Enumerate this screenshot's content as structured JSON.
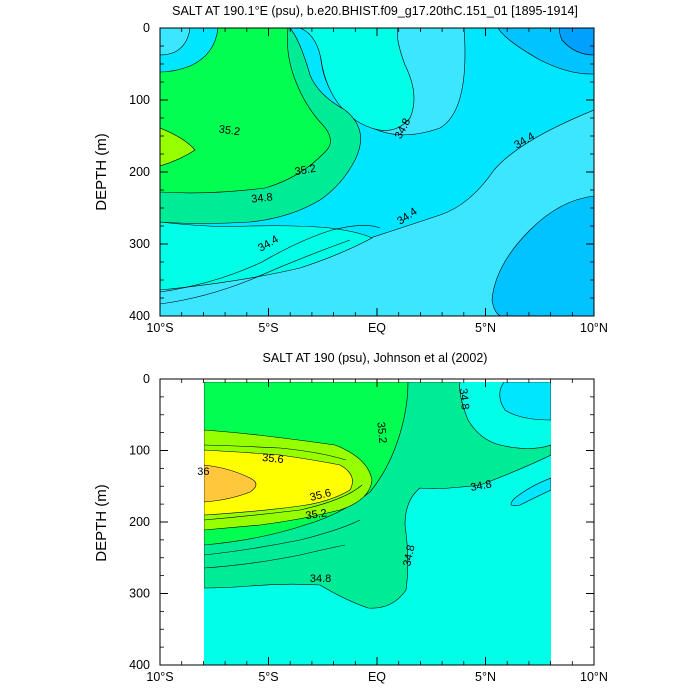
{
  "chart_data": [
    {
      "type": "contour",
      "title": "SALT AT 190.1°E (psu), b.e20.BHIST.f09_g17.20thC.151_01 [1895-1914]",
      "ylabel": "DEPTH (m)",
      "xlabel": "",
      "xlim": [
        -10,
        10
      ],
      "ylim": [
        400,
        0
      ],
      "x_ticks": [
        {
          "value": -10,
          "label": "10°S"
        },
        {
          "value": -5,
          "label": "5°S"
        },
        {
          "value": 0,
          "label": "EQ"
        },
        {
          "value": 5,
          "label": "5°N"
        },
        {
          "value": 10,
          "label": "10°N"
        }
      ],
      "y_ticks": [
        0,
        100,
        200,
        300,
        400
      ],
      "contour_interval": 0.2,
      "colors": [
        "#00c3ff",
        "#00e6ff",
        "#3ce6ff",
        "#00ffe6",
        "#00eb96",
        "#00ff50",
        "#96ff00"
      ],
      "contour_labels": [
        {
          "text": "35.2",
          "lat": -6.8,
          "depth": 143,
          "angle": 8
        },
        {
          "text": "35.2",
          "lat": -3.3,
          "depth": 198,
          "angle": -10
        },
        {
          "text": "34.8",
          "lat": -5.3,
          "depth": 237,
          "angle": -6
        },
        {
          "text": "34.4",
          "lat": -5.0,
          "depth": 300,
          "angle": -30
        },
        {
          "text": "34.8",
          "lat": 1.2,
          "depth": 140,
          "angle": -62
        },
        {
          "text": "34.4",
          "lat": 1.4,
          "depth": 262,
          "angle": -34
        },
        {
          "text": "34.4",
          "lat": 6.8,
          "depth": 157,
          "angle": -30
        }
      ]
    },
    {
      "type": "contour",
      "title": "SALT AT 190 (psu), Johnson et al (2002)",
      "ylabel": "DEPTH (m)",
      "xlabel": "",
      "xlim": [
        -10,
        10
      ],
      "ylim": [
        400,
        0
      ],
      "data_lat_range": [
        -8,
        8
      ],
      "data_depth_range": [
        5,
        400
      ],
      "x_ticks": [
        {
          "value": -10,
          "label": "10°S"
        },
        {
          "value": -5,
          "label": "5°S"
        },
        {
          "value": 0,
          "label": "EQ"
        },
        {
          "value": 5,
          "label": "5°N"
        },
        {
          "value": 10,
          "label": "10°N"
        }
      ],
      "y_ticks": [
        0,
        100,
        200,
        300,
        400
      ],
      "contour_interval": 0.2,
      "colors": [
        "#00ffe6",
        "#00e6ff",
        "#00eb96",
        "#00ff50",
        "#96ff00",
        "#ffff00",
        "#ffc83c"
      ],
      "contour_labels": [
        {
          "text": "36",
          "lat": -8.0,
          "depth": 130,
          "angle": 0
        },
        {
          "text": "35.6",
          "lat": -4.8,
          "depth": 112,
          "angle": 6
        },
        {
          "text": "35.6",
          "lat": -2.6,
          "depth": 163,
          "angle": -14
        },
        {
          "text": "35.2",
          "lat": -2.8,
          "depth": 190,
          "angle": -8
        },
        {
          "text": "35.2",
          "lat": 0.2,
          "depth": 75,
          "angle": 84
        },
        {
          "text": "34.8",
          "lat": 4.0,
          "depth": 28,
          "angle": 84
        },
        {
          "text": "34.8",
          "lat": 4.8,
          "depth": 150,
          "angle": -10
        },
        {
          "text": "34.8",
          "lat": 1.5,
          "depth": 247,
          "angle": -78
        },
        {
          "text": "34.8",
          "lat": -2.6,
          "depth": 280,
          "angle": 0
        }
      ]
    }
  ]
}
